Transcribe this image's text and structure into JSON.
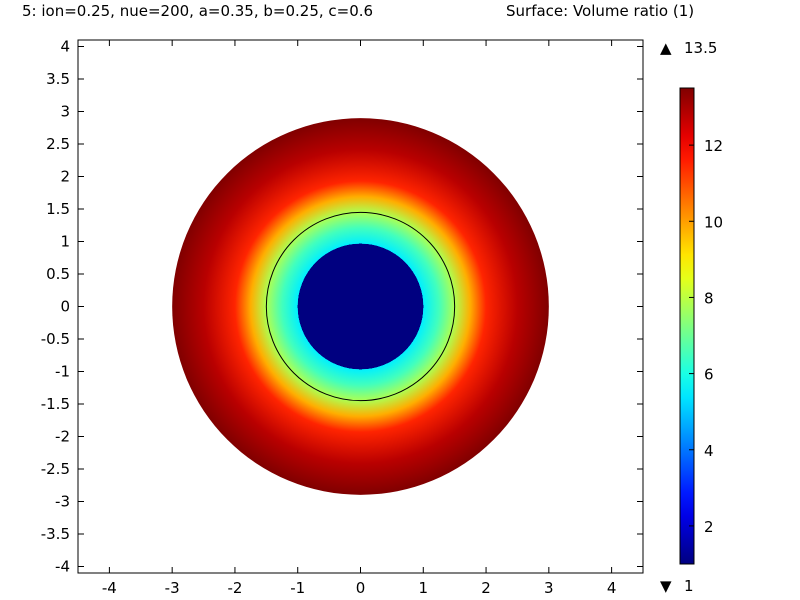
{
  "title": {
    "parameters": "5: ion=0.25, nue=200, a=0.35, b=0.25, c=0.6",
    "surface": "Surface: Volume ratio (1)"
  },
  "chart_data": {
    "type": "heatmap",
    "title": "Surface: Volume ratio (1)",
    "xlim": [
      -4.5,
      4.5
    ],
    "ylim": [
      -4.1,
      4.1
    ],
    "x_ticks": [
      "-4",
      "-3",
      "-2",
      "-1",
      "0",
      "1",
      "2",
      "3",
      "4"
    ],
    "y_ticks": [
      "4",
      "3.5",
      "3",
      "2.5",
      "2",
      "1.5",
      "1",
      "0.5",
      "0",
      "-0.5",
      "-1",
      "-1.5",
      "-2",
      "-2.5",
      "-3",
      "-3.5",
      "-4"
    ],
    "grid": false,
    "domain": {
      "shape": "annulus",
      "center": [
        0,
        0
      ],
      "inner_radius": 1.0,
      "interface_radius": 1.5,
      "outer_radius": 3.0
    },
    "radial_profile": {
      "r": [
        0.0,
        1.0,
        1.0,
        1.25,
        1.5,
        1.75,
        2.0,
        2.5,
        3.0
      ],
      "value": [
        1.0,
        1.0,
        5.5,
        6.5,
        7.8,
        9.8,
        11.5,
        12.8,
        13.5
      ]
    },
    "colorbar": {
      "colormap": "jet",
      "min": 1,
      "max": 13.5,
      "max_label": "13.5",
      "min_label": "1",
      "max_marker": "▲",
      "min_marker": "▼",
      "ticks": [
        "2",
        "4",
        "6",
        "8",
        "10",
        "12"
      ],
      "tick_values": [
        2,
        4,
        6,
        8,
        10,
        12
      ]
    }
  }
}
